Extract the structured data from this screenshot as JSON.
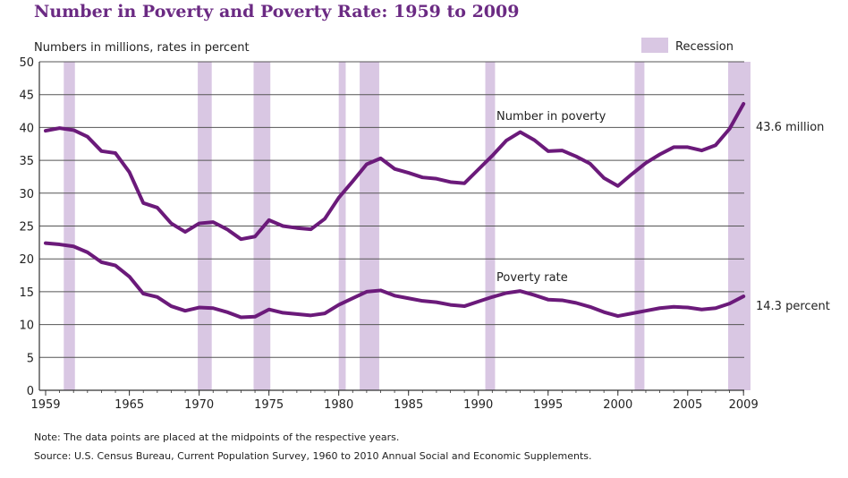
{
  "chart_data": {
    "type": "line",
    "title": "Number in Poverty and Poverty Rate: 1959 to 2009",
    "ylabel": "Numbers in millions, rates in percent",
    "xlabel": "",
    "ylim": [
      0,
      50
    ],
    "xlim": [
      1959,
      2009
    ],
    "y_ticks": [
      0,
      5,
      10,
      15,
      20,
      25,
      30,
      35,
      40,
      45,
      50
    ],
    "x_ticks": [
      {
        "year": 1959,
        "label": "1959"
      },
      {
        "year": 1965,
        "label": "1965"
      },
      {
        "year": 1970,
        "label": "1970"
      },
      {
        "year": 1975,
        "label": "1975"
      },
      {
        "year": 1980,
        "label": "1980"
      },
      {
        "year": 1985,
        "label": "1985"
      },
      {
        "year": 1990,
        "label": "1990"
      },
      {
        "year": 1995,
        "label": "1995"
      },
      {
        "year": 2000,
        "label": "2000"
      },
      {
        "year": 2005,
        "label": "2005"
      },
      {
        "year": 2009,
        "label": "2009"
      }
    ],
    "legend": {
      "label": "Recession",
      "color": "#d9c7e3",
      "placement": "top-right"
    },
    "recessions": [
      {
        "start": 1960.3,
        "end": 1961.1
      },
      {
        "start": 1969.9,
        "end": 1970.9
      },
      {
        "start": 1973.9,
        "end": 1975.1
      },
      {
        "start": 1980.0,
        "end": 1980.5
      },
      {
        "start": 1981.5,
        "end": 1982.9
      },
      {
        "start": 1990.5,
        "end": 1991.2
      },
      {
        "start": 2001.2,
        "end": 2001.9
      },
      {
        "start": 2007.9,
        "end": 2009.5
      }
    ],
    "series": [
      {
        "name": "Number in poverty",
        "label": "Number in poverty",
        "end_label": "43.6 million",
        "color": "#6b1a7a",
        "x": [
          1959,
          1960,
          1961,
          1962,
          1963,
          1964,
          1965,
          1966,
          1967,
          1968,
          1969,
          1970,
          1971,
          1972,
          1973,
          1974,
          1975,
          1976,
          1977,
          1978,
          1979,
          1980,
          1981,
          1982,
          1983,
          1984,
          1985,
          1986,
          1987,
          1988,
          1989,
          1990,
          1991,
          1992,
          1993,
          1994,
          1995,
          1996,
          1997,
          1998,
          1999,
          2000,
          2001,
          2002,
          2003,
          2004,
          2005,
          2006,
          2007,
          2008,
          2009
        ],
        "values": [
          39.5,
          39.9,
          39.6,
          38.6,
          36.4,
          36.1,
          33.2,
          28.5,
          27.8,
          25.4,
          24.1,
          25.4,
          25.6,
          24.5,
          23.0,
          23.4,
          25.9,
          25.0,
          24.7,
          24.5,
          26.1,
          29.3,
          31.8,
          34.4,
          35.3,
          33.7,
          33.1,
          32.4,
          32.2,
          31.7,
          31.5,
          33.6,
          35.7,
          38.0,
          39.3,
          38.1,
          36.4,
          36.5,
          35.6,
          34.5,
          32.3,
          31.1,
          32.9,
          34.6,
          35.9,
          37.0,
          37.0,
          36.5,
          37.3,
          39.8,
          43.6
        ]
      },
      {
        "name": "Poverty rate",
        "label": "Poverty rate",
        "end_label": "14.3 percent",
        "color": "#6b1a7a",
        "x": [
          1959,
          1960,
          1961,
          1962,
          1963,
          1964,
          1965,
          1966,
          1967,
          1968,
          1969,
          1970,
          1971,
          1972,
          1973,
          1974,
          1975,
          1976,
          1977,
          1978,
          1979,
          1980,
          1981,
          1982,
          1983,
          1984,
          1985,
          1986,
          1987,
          1988,
          1989,
          1990,
          1991,
          1992,
          1993,
          1994,
          1995,
          1996,
          1997,
          1998,
          1999,
          2000,
          2001,
          2002,
          2003,
          2004,
          2005,
          2006,
          2007,
          2008,
          2009
        ],
        "values": [
          22.4,
          22.2,
          21.9,
          21.0,
          19.5,
          19.0,
          17.3,
          14.7,
          14.2,
          12.8,
          12.1,
          12.6,
          12.5,
          11.9,
          11.1,
          11.2,
          12.3,
          11.8,
          11.6,
          11.4,
          11.7,
          13.0,
          14.0,
          15.0,
          15.2,
          14.4,
          14.0,
          13.6,
          13.4,
          13.0,
          12.8,
          13.5,
          14.2,
          14.8,
          15.1,
          14.5,
          13.8,
          13.7,
          13.3,
          12.7,
          11.9,
          11.3,
          11.7,
          12.1,
          12.5,
          12.7,
          12.6,
          12.3,
          12.5,
          13.2,
          14.3
        ]
      }
    ]
  },
  "notes": {
    "note": "Note:  The data points are placed at the midpoints of the respective years.",
    "source": "Source:  U.S. Census Bureau, Current Population Survey, 1960 to 2010 Annual Social and Economic Supplements."
  }
}
